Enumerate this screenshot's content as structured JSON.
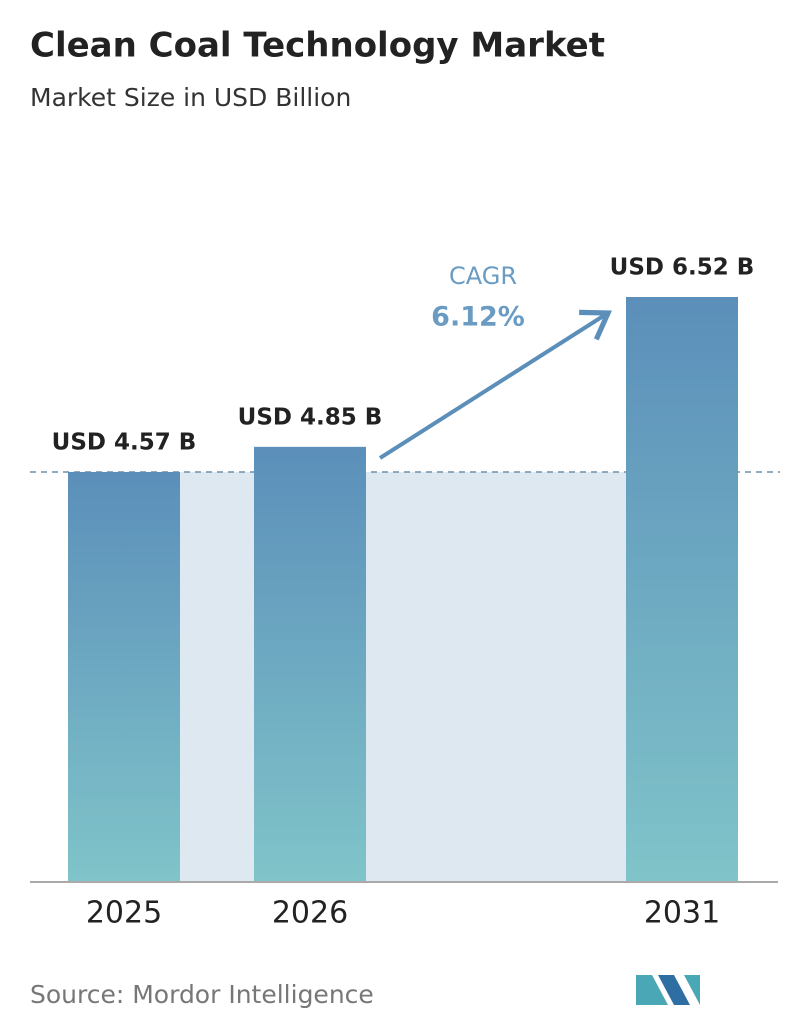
{
  "chart_data": {
    "type": "bar",
    "title": "Clean Coal Technology Market",
    "subtitle": "Market Size in USD Billion",
    "categories": [
      "2025",
      "2026",
      "2031"
    ],
    "values": [
      4.57,
      4.85,
      6.52
    ],
    "value_labels": [
      "USD 4.57 B",
      "USD 4.85 B",
      "USD 6.52 B"
    ],
    "color_top": "#5b8fba",
    "color_bottom": "#80c4c9",
    "annotations": [
      "CAGR",
      "6.12%"
    ],
    "source": "Source: Mordor Intelligence"
  }
}
